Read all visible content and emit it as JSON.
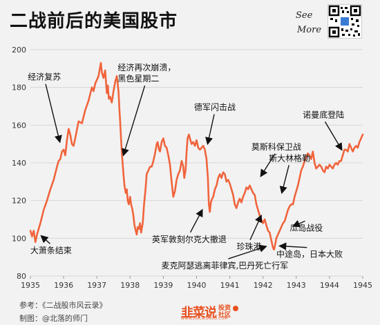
{
  "header": {
    "title": "二战前后的美国股市",
    "see_more_line1": "See",
    "see_more_line2": "More"
  },
  "footer": {
    "reference": "参考：《二战股市风云录》",
    "credit": "制图：@北落的师门",
    "brand_main": "韭菜说",
    "brand_line1": "投资",
    "brand_line2": "社区",
    "brand_url": "WWW.JIUCAISHUO.COM"
  },
  "colors": {
    "line": "#f0643c",
    "grid": "#d7d7d7",
    "axis_text": "#333333",
    "accent": "#e8501f"
  },
  "chart_data": {
    "type": "line",
    "title": "二战前后的美国股市",
    "xlabel": "",
    "ylabel": "",
    "xlim": [
      1935,
      1945
    ],
    "ylim": [
      80,
      200
    ],
    "x_ticks": [
      "1935",
      "1936",
      "1937",
      "1938",
      "1939",
      "1940",
      "1941",
      "1942",
      "1943",
      "1944",
      "1945"
    ],
    "y_ticks": [
      80,
      100,
      120,
      140,
      160,
      180,
      200
    ],
    "grid": "horizontal",
    "series": [
      {
        "name": "",
        "points": [
          [
            1935.0,
            104
          ],
          [
            1935.05,
            101
          ],
          [
            1935.1,
            104
          ],
          [
            1935.15,
            98
          ],
          [
            1935.2,
            102
          ],
          [
            1935.3,
            108
          ],
          [
            1935.4,
            115
          ],
          [
            1935.5,
            120
          ],
          [
            1935.6,
            126
          ],
          [
            1935.7,
            131
          ],
          [
            1935.8,
            138
          ],
          [
            1935.85,
            141
          ],
          [
            1935.9,
            142
          ],
          [
            1935.95,
            146
          ],
          [
            1936.0,
            147
          ],
          [
            1936.05,
            144
          ],
          [
            1936.1,
            152
          ],
          [
            1936.15,
            158
          ],
          [
            1936.2,
            155
          ],
          [
            1936.25,
            150
          ],
          [
            1936.3,
            149
          ],
          [
            1936.35,
            153
          ],
          [
            1936.45,
            162
          ],
          [
            1936.55,
            161
          ],
          [
            1936.65,
            168
          ],
          [
            1936.75,
            173
          ],
          [
            1936.85,
            180
          ],
          [
            1936.9,
            178
          ],
          [
            1936.95,
            182
          ],
          [
            1937.0,
            184
          ],
          [
            1937.05,
            186
          ],
          [
            1937.1,
            191
          ],
          [
            1937.12,
            193
          ],
          [
            1937.15,
            188
          ],
          [
            1937.2,
            185
          ],
          [
            1937.25,
            189
          ],
          [
            1937.3,
            177
          ],
          [
            1937.33,
            181
          ],
          [
            1937.36,
            174
          ],
          [
            1937.4,
            175
          ],
          [
            1937.45,
            172
          ],
          [
            1937.5,
            178
          ],
          [
            1937.55,
            183
          ],
          [
            1937.6,
            186
          ],
          [
            1937.62,
            183
          ],
          [
            1937.65,
            178
          ],
          [
            1937.68,
            168
          ],
          [
            1937.7,
            162
          ],
          [
            1937.73,
            152
          ],
          [
            1937.76,
            143
          ],
          [
            1937.8,
            134
          ],
          [
            1937.83,
            128
          ],
          [
            1937.87,
            124
          ],
          [
            1937.9,
            126
          ],
          [
            1937.93,
            120
          ],
          [
            1937.96,
            118
          ],
          [
            1938.0,
            122
          ],
          [
            1938.03,
            118
          ],
          [
            1938.06,
            116
          ],
          [
            1938.1,
            112
          ],
          [
            1938.13,
            107
          ],
          [
            1938.17,
            104
          ],
          [
            1938.2,
            102
          ],
          [
            1938.23,
            106
          ],
          [
            1938.27,
            105
          ],
          [
            1938.3,
            108
          ],
          [
            1938.33,
            103
          ],
          [
            1938.38,
            108
          ],
          [
            1938.42,
            118
          ],
          [
            1938.46,
            125
          ],
          [
            1938.5,
            134
          ],
          [
            1938.55,
            136
          ],
          [
            1938.6,
            138
          ],
          [
            1938.65,
            138
          ],
          [
            1938.7,
            141
          ],
          [
            1938.75,
            145
          ],
          [
            1938.8,
            150
          ],
          [
            1938.83,
            151
          ],
          [
            1938.87,
            147
          ],
          [
            1938.9,
            146
          ],
          [
            1938.95,
            151
          ],
          [
            1939.0,
            153
          ],
          [
            1939.05,
            149
          ],
          [
            1939.1,
            148
          ],
          [
            1939.15,
            144
          ],
          [
            1939.2,
            139
          ],
          [
            1939.25,
            130
          ],
          [
            1939.3,
            122
          ],
          [
            1939.35,
            125
          ],
          [
            1939.4,
            131
          ],
          [
            1939.45,
            134
          ],
          [
            1939.5,
            136
          ],
          [
            1939.55,
            141
          ],
          [
            1939.6,
            138
          ],
          [
            1939.63,
            132
          ],
          [
            1939.67,
            136
          ],
          [
            1939.7,
            146
          ],
          [
            1939.73,
            153
          ],
          [
            1939.77,
            155
          ],
          [
            1939.8,
            153
          ],
          [
            1939.85,
            150
          ],
          [
            1939.9,
            151
          ],
          [
            1939.95,
            149
          ],
          [
            1940.0,
            152
          ],
          [
            1940.05,
            148
          ],
          [
            1940.1,
            147
          ],
          [
            1940.15,
            148
          ],
          [
            1940.2,
            149
          ],
          [
            1940.25,
            147
          ],
          [
            1940.3,
            142
          ],
          [
            1940.34,
            132
          ],
          [
            1940.37,
            118
          ],
          [
            1940.4,
            114
          ],
          [
            1940.43,
            119
          ],
          [
            1940.47,
            121
          ],
          [
            1940.5,
            122
          ],
          [
            1940.55,
            126
          ],
          [
            1940.6,
            128
          ],
          [
            1940.65,
            132
          ],
          [
            1940.7,
            134
          ],
          [
            1940.75,
            132
          ],
          [
            1940.8,
            135
          ],
          [
            1940.85,
            134
          ],
          [
            1940.9,
            130
          ],
          [
            1940.95,
            131
          ],
          [
            1941.0,
            129
          ],
          [
            1941.05,
            126
          ],
          [
            1941.1,
            123
          ],
          [
            1941.15,
            118
          ],
          [
            1941.2,
            116
          ],
          [
            1941.25,
            119
          ],
          [
            1941.3,
            121
          ],
          [
            1941.35,
            119
          ],
          [
            1941.4,
            122
          ],
          [
            1941.45,
            124
          ],
          [
            1941.5,
            127
          ],
          [
            1941.55,
            126
          ],
          [
            1941.6,
            128
          ],
          [
            1941.65,
            126
          ],
          [
            1941.7,
            124
          ],
          [
            1941.75,
            123
          ],
          [
            1941.8,
            118
          ],
          [
            1941.85,
            115
          ],
          [
            1941.9,
            112
          ],
          [
            1941.95,
            110
          ],
          [
            1942.0,
            108
          ],
          [
            1942.05,
            110
          ],
          [
            1942.1,
            107
          ],
          [
            1942.15,
            104
          ],
          [
            1942.2,
            103
          ],
          [
            1942.25,
            99
          ],
          [
            1942.3,
            95
          ],
          [
            1942.33,
            94
          ],
          [
            1942.37,
            97
          ],
          [
            1942.4,
            100
          ],
          [
            1942.45,
            102
          ],
          [
            1942.5,
            104
          ],
          [
            1942.55,
            106
          ],
          [
            1942.6,
            108
          ],
          [
            1942.65,
            109
          ],
          [
            1942.7,
            112
          ],
          [
            1942.75,
            115
          ],
          [
            1942.8,
            117
          ],
          [
            1942.85,
            118
          ],
          [
            1942.9,
            118
          ],
          [
            1942.95,
            122
          ],
          [
            1943.0,
            125
          ],
          [
            1943.05,
            128
          ],
          [
            1943.1,
            132
          ],
          [
            1943.15,
            136
          ],
          [
            1943.2,
            138
          ],
          [
            1943.25,
            141
          ],
          [
            1943.3,
            143
          ],
          [
            1943.35,
            145
          ],
          [
            1943.4,
            144
          ],
          [
            1943.45,
            142
          ],
          [
            1943.5,
            146
          ],
          [
            1943.55,
            140
          ],
          [
            1943.6,
            137
          ],
          [
            1943.65,
            138
          ],
          [
            1943.7,
            139
          ],
          [
            1943.75,
            138
          ],
          [
            1943.8,
            136
          ],
          [
            1943.85,
            135
          ],
          [
            1943.9,
            138
          ],
          [
            1943.95,
            137
          ],
          [
            1944.0,
            139
          ],
          [
            1944.05,
            138
          ],
          [
            1944.1,
            137
          ],
          [
            1944.15,
            139
          ],
          [
            1944.2,
            140
          ],
          [
            1944.25,
            139
          ],
          [
            1944.3,
            141
          ],
          [
            1944.35,
            141
          ],
          [
            1944.4,
            144
          ],
          [
            1944.45,
            147
          ],
          [
            1944.5,
            147
          ],
          [
            1944.55,
            146
          ],
          [
            1944.6,
            150
          ],
          [
            1944.65,
            148
          ],
          [
            1944.7,
            146
          ],
          [
            1944.75,
            148
          ],
          [
            1944.8,
            149
          ],
          [
            1944.85,
            148
          ],
          [
            1944.9,
            151
          ],
          [
            1944.95,
            153
          ],
          [
            1945.0,
            155
          ]
        ]
      }
    ],
    "annotations": [
      {
        "text": "经济复苏",
        "label_x": 1935.42,
        "label_y": 184,
        "target_x": 1935.9,
        "target_y": 150
      },
      {
        "text": "大萧条结束",
        "label_x": 1935.62,
        "label_y": 92,
        "target_x": 1935.28,
        "target_y": 102
      },
      {
        "text": "经济再次崩溃，",
        "text2": "黑色星期二",
        "label_x": 1938.5,
        "label_y": 189,
        "target_x": 1937.78,
        "target_y": 143
      },
      {
        "text": "德军闪击战",
        "label_x": 1940.55,
        "label_y": 168,
        "target_x": 1940.32,
        "target_y": 149
      },
      {
        "text": "英军敦刻尔克大撤退",
        "label_x": 1939.78,
        "label_y": 98,
        "target_x": 1940.2,
        "target_y": 116
      },
      {
        "text": "莫斯科保卫战",
        "label_x": 1942.4,
        "label_y": 147,
        "target_x": 1941.9,
        "target_y": 132
      },
      {
        "text": "斯大林格勒",
        "label_x": 1942.8,
        "label_y": 141,
        "target_x": 1942.55,
        "target_y": 123
      },
      {
        "text": "诺曼底登陆",
        "label_x": 1943.82,
        "label_y": 164,
        "target_x": 1944.4,
        "target_y": 146
      },
      {
        "text": "珍珠港",
        "label_x": 1941.58,
        "label_y": 94,
        "target_x": 1941.97,
        "target_y": 113
      },
      {
        "text": "瓜岛战役",
        "label_x": 1943.3,
        "label_y": 104,
        "target_x": 1942.85,
        "target_y": 106
      },
      {
        "text": "麦克阿瑟逃离菲律宾,巴丹死亡行军",
        "label_x": 1940.85,
        "label_y": 84,
        "target_x": 1942.15,
        "target_y": 96
      },
      {
        "text": "中途岛，日本大败",
        "label_x": 1943.4,
        "label_y": 90,
        "target_x": 1942.44,
        "target_y": 96
      }
    ]
  }
}
